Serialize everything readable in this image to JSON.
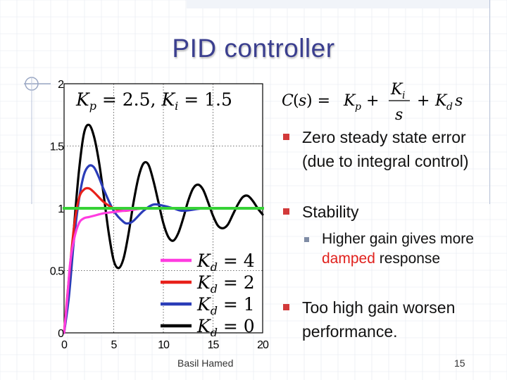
{
  "slide": {
    "title": "PID controller",
    "footer_author": "Basil Hamed",
    "page_number": "15"
  },
  "formula": "C(s) = K_p + K_i/s + K_d s",
  "bullets": [
    {
      "parts": [
        "Zero steady state error (due to integral control)"
      ]
    },
    {
      "parts": [
        "Stability"
      ]
    },
    {
      "sub": true,
      "parts": [
        "Higher gain gives more ",
        "damped",
        " response"
      ]
    },
    {
      "parts": [
        "Too high gain worsen performance."
      ]
    }
  ],
  "chart_data": {
    "type": "line",
    "annotation": "K_p = 2.5,  K_i = 1.5",
    "xlim": [
      0,
      20
    ],
    "ylim": [
      0,
      2
    ],
    "xticks": [
      "0",
      "5",
      "10",
      "15",
      "20"
    ],
    "yticks": [
      "0",
      "0.5",
      "1",
      "1.5",
      "2"
    ],
    "grid": true,
    "legend_placement": "bottom-right",
    "reference_line": {
      "y": 1,
      "color": "#36d236"
    },
    "series": [
      {
        "name": "K_d = 4",
        "color": "#ff3ce0",
        "x": [
          0,
          0.3,
          0.6,
          1,
          1.5,
          2,
          2.5,
          3,
          4,
          5,
          6,
          7,
          8,
          10,
          12,
          14,
          16,
          18,
          20
        ],
        "y": [
          0,
          0.25,
          0.55,
          0.75,
          0.88,
          0.92,
          0.93,
          0.94,
          0.96,
          0.97,
          0.98,
          0.99,
          1.0,
          1.0,
          1.0,
          1.0,
          1.0,
          1.0,
          1.0
        ]
      },
      {
        "name": "K_d = 2",
        "color": "#e8201a",
        "x": [
          0,
          0.5,
          1,
          1.5,
          2,
          2.5,
          3,
          4,
          5,
          6,
          7,
          8,
          10,
          12,
          14,
          16,
          18,
          20
        ],
        "y": [
          0,
          0.45,
          0.85,
          1.08,
          1.15,
          1.16,
          1.13,
          1.05,
          1.0,
          0.98,
          0.99,
          1.0,
          1.0,
          1.0,
          1.0,
          1.0,
          1.0,
          1.0
        ]
      },
      {
        "name": "K_d = 1",
        "color": "#2a3cb8",
        "x": [
          0,
          0.5,
          1,
          1.5,
          2,
          2.5,
          3,
          3.5,
          4,
          5,
          6,
          6.5,
          7,
          8,
          9,
          10,
          11,
          12,
          14,
          16,
          18,
          20
        ],
        "y": [
          0,
          0.3,
          0.75,
          1.07,
          1.27,
          1.34,
          1.33,
          1.25,
          1.15,
          0.98,
          0.89,
          0.88,
          0.9,
          0.98,
          1.03,
          1.02,
          1.0,
          0.98,
          1.0,
          1.0,
          1.0,
          1.0
        ]
      },
      {
        "name": "K_d = 0",
        "color": "#000000",
        "x": [
          0,
          0.5,
          1,
          1.5,
          2,
          2.5,
          3,
          3.5,
          4,
          4.5,
          5,
          5.5,
          6,
          6.5,
          7,
          7.5,
          8,
          8.5,
          9,
          9.5,
          10,
          10.5,
          11,
          11.5,
          12,
          12.5,
          13,
          13.5,
          14,
          14.5,
          15,
          15.5,
          16,
          16.5,
          17,
          17.5,
          18,
          18.5,
          19,
          19.5,
          20
        ],
        "y": [
          0,
          0.35,
          0.85,
          1.3,
          1.6,
          1.67,
          1.58,
          1.38,
          1.1,
          0.8,
          0.58,
          0.52,
          0.6,
          0.8,
          1.05,
          1.25,
          1.36,
          1.35,
          1.22,
          1.05,
          0.88,
          0.77,
          0.74,
          0.8,
          0.92,
          1.06,
          1.16,
          1.19,
          1.15,
          1.05,
          0.94,
          0.86,
          0.84,
          0.87,
          0.95,
          1.03,
          1.09,
          1.1,
          1.06,
          1.0,
          0.95
        ]
      }
    ]
  }
}
